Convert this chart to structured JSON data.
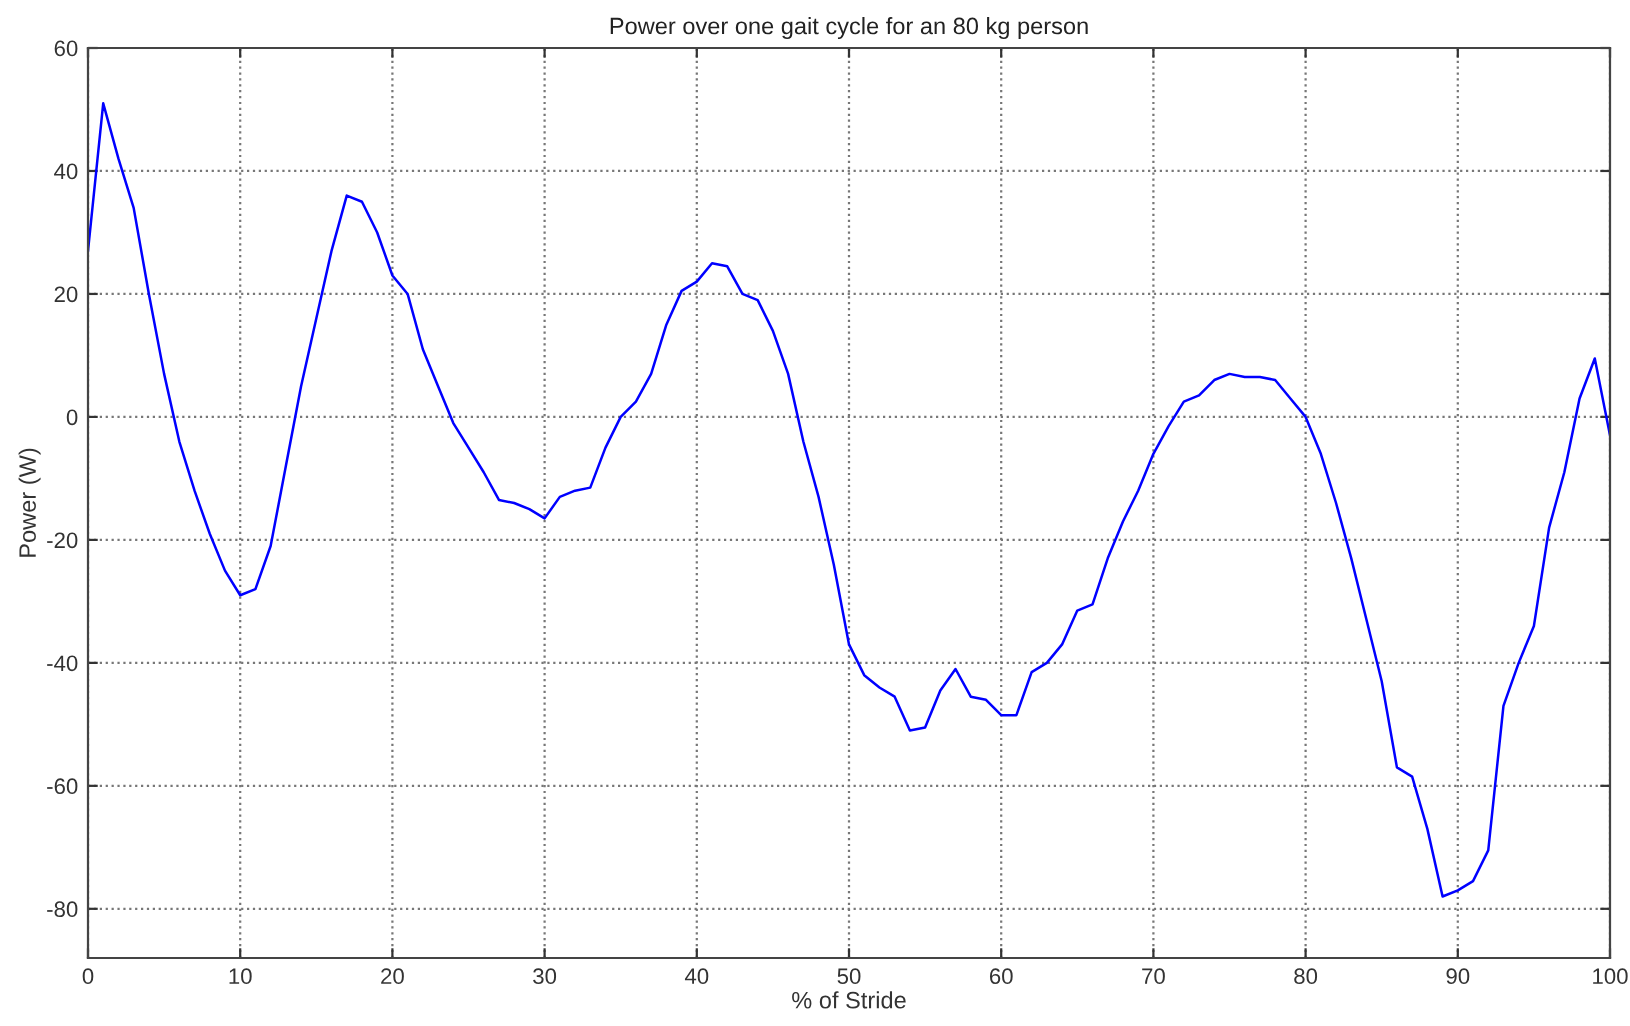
{
  "chart_data": {
    "type": "line",
    "title": "Power over one gait cycle for an 80 kg person",
    "xlabel": "% of Stride",
    "ylabel": "Power (W)",
    "x": [
      0,
      1,
      2,
      3,
      4,
      5,
      6,
      7,
      8,
      9,
      10,
      11,
      12,
      13,
      14,
      15,
      16,
      17,
      18,
      19,
      20,
      21,
      22,
      23,
      24,
      25,
      26,
      27,
      28,
      29,
      30,
      31,
      32,
      33,
      34,
      35,
      36,
      37,
      38,
      39,
      40,
      41,
      42,
      43,
      44,
      45,
      46,
      47,
      48,
      49,
      50,
      51,
      52,
      53,
      54,
      55,
      56,
      57,
      58,
      59,
      60,
      61,
      62,
      63,
      64,
      65,
      66,
      67,
      68,
      69,
      70,
      71,
      72,
      73,
      74,
      75,
      76,
      77,
      78,
      79,
      80,
      81,
      82,
      83,
      84,
      85,
      86,
      87,
      88,
      89,
      90,
      91,
      92,
      93,
      94,
      95,
      96,
      97,
      98,
      99,
      100
    ],
    "series": [
      {
        "color": "#0000ff",
        "values": [
          27,
          51,
          42,
          34,
          20,
          7,
          -4,
          -12,
          -19,
          -25,
          -29,
          -28,
          -21,
          -8,
          5,
          16,
          27,
          36,
          35,
          30,
          23,
          20,
          11,
          5,
          -1,
          -5,
          -9,
          -13.5,
          -14,
          -15,
          -16.5,
          -13,
          -12,
          -11.5,
          -5,
          0,
          2.5,
          7,
          15,
          20.5,
          22,
          25,
          24.5,
          20,
          19,
          14,
          7,
          -4,
          -13,
          -24,
          -37,
          -42,
          -44,
          -45.5,
          -51,
          -50.5,
          -44.5,
          -41,
          -45.5,
          -46,
          -48.5,
          -48.5,
          -41.5,
          -40,
          -37,
          -31.5,
          -30.5,
          -23,
          -17,
          -12,
          -6,
          -1.5,
          2.5,
          3.5,
          6,
          7,
          6.5,
          6.5,
          6,
          3,
          0,
          -6,
          -14,
          -23,
          -33,
          -43,
          -57,
          -58.5,
          -67,
          -78,
          -77,
          -75.5,
          -70.5,
          -47,
          -40,
          -34,
          -18,
          -9,
          3,
          9.5,
          -3
        ]
      }
    ],
    "xlim": [
      0,
      100
    ],
    "xticks": [
      0,
      10,
      20,
      30,
      40,
      50,
      60,
      70,
      80,
      90,
      100
    ],
    "ylim": [
      -88,
      60
    ],
    "yticks": [
      -80,
      -60,
      -40,
      -20,
      0,
      20,
      40,
      60
    ],
    "grid": true,
    "marker": "none",
    "line_style": "solid"
  }
}
